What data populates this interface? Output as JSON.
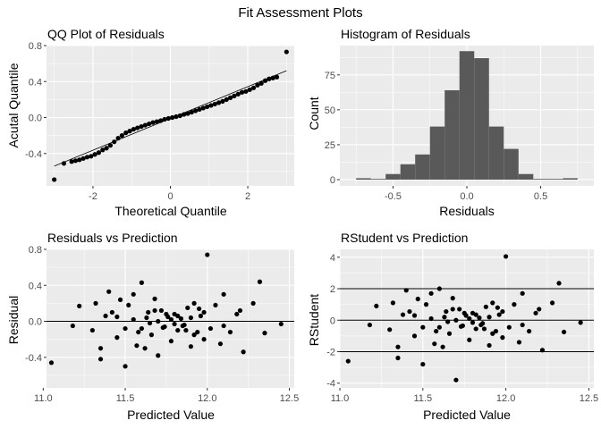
{
  "figure_title": "Fit Assessment Plots",
  "colors": {
    "panel_bg": "#ebebeb",
    "grid": "#ffffff",
    "point": "#000000",
    "bar": "#595959",
    "tick_text": "#4d4d4d"
  },
  "chart_data": [
    {
      "id": "qq",
      "type": "scatter",
      "title": "QQ Plot of Residuals",
      "xlabel": "Theoretical Quantile",
      "ylabel": "Acutal Quantile",
      "xlim": [
        -3.2,
        3.2
      ],
      "ylim": [
        -0.76,
        0.8
      ],
      "xticks": [
        -2,
        0,
        2
      ],
      "xtick_labels": [
        "-2",
        "0",
        "2"
      ],
      "yticks": [
        -0.4,
        0.0,
        0.4,
        0.8
      ],
      "ytick_labels": [
        "-0.4",
        "0.0",
        "0.4",
        "0.8"
      ],
      "reference_line": {
        "x": [
          -3.0,
          3.0
        ],
        "y": [
          -0.54,
          0.52
        ]
      },
      "points": {
        "x": [
          -3.0,
          -2.75,
          -2.55,
          -2.45,
          -2.35,
          -2.25,
          -2.15,
          -2.05,
          -1.95,
          -1.85,
          -1.75,
          -1.65,
          -1.55,
          -1.45,
          -1.35,
          -1.25,
          -1.15,
          -1.05,
          -0.95,
          -0.85,
          -0.75,
          -0.65,
          -0.55,
          -0.45,
          -0.35,
          -0.25,
          -0.15,
          -0.05,
          0.05,
          0.15,
          0.25,
          0.35,
          0.45,
          0.55,
          0.65,
          0.75,
          0.85,
          0.95,
          1.05,
          1.15,
          1.25,
          1.35,
          1.45,
          1.55,
          1.65,
          1.75,
          1.85,
          1.95,
          2.05,
          2.15,
          2.25,
          2.35,
          2.45,
          2.55,
          2.65,
          2.75,
          3.0
        ],
        "y": [
          -0.69,
          -0.51,
          -0.49,
          -0.48,
          -0.47,
          -0.455,
          -0.44,
          -0.43,
          -0.41,
          -0.39,
          -0.36,
          -0.34,
          -0.31,
          -0.27,
          -0.23,
          -0.2,
          -0.17,
          -0.15,
          -0.13,
          -0.115,
          -0.1,
          -0.085,
          -0.07,
          -0.055,
          -0.045,
          -0.035,
          -0.02,
          -0.01,
          0.0,
          0.01,
          0.02,
          0.035,
          0.045,
          0.06,
          0.075,
          0.09,
          0.105,
          0.12,
          0.135,
          0.15,
          0.165,
          0.18,
          0.2,
          0.22,
          0.24,
          0.26,
          0.28,
          0.29,
          0.31,
          0.33,
          0.36,
          0.38,
          0.41,
          0.43,
          0.44,
          0.45,
          0.73
        ]
      }
    },
    {
      "id": "hist",
      "type": "bar",
      "title": "Histogram of Residuals",
      "xlabel": "Residuals",
      "ylabel": "Count",
      "xlim": [
        -0.86,
        0.86
      ],
      "ylim": [
        -4.5,
        96
      ],
      "xticks": [
        -0.5,
        0.0,
        0.5
      ],
      "xtick_labels": [
        "-0.5",
        "0.0",
        "0.5"
      ],
      "yticks": [
        0,
        25,
        50,
        75
      ],
      "ytick_labels": [
        "0",
        "25",
        "50",
        "75"
      ],
      "bin_width": 0.1,
      "bin_centers": [
        -0.7,
        -0.6,
        -0.5,
        -0.4,
        -0.3,
        -0.2,
        -0.1,
        0.0,
        0.1,
        0.2,
        0.3,
        0.4,
        0.5,
        0.6,
        0.7
      ],
      "counts": [
        1,
        0,
        4,
        11,
        18,
        38,
        64,
        92,
        87,
        38,
        22,
        4,
        0,
        0,
        1
      ]
    },
    {
      "id": "resid",
      "type": "scatter",
      "title": "Residuals vs Prediction",
      "xlabel": "Predicted Value",
      "ylabel": "Residual",
      "xlim": [
        11.02,
        12.53
      ],
      "ylim": [
        -0.74,
        0.8
      ],
      "xticks": [
        11.0,
        11.5,
        12.0,
        12.5
      ],
      "xtick_labels": [
        "11.0",
        "11.5",
        "12.0",
        "12.5"
      ],
      "yticks": [
        -0.4,
        0.0,
        0.4,
        0.8
      ],
      "ytick_labels": [
        "-0.4",
        "0.0",
        "0.4",
        "0.8"
      ],
      "hlines": [
        0.0
      ],
      "points": {
        "x": [
          11.05,
          11.18,
          11.22,
          11.3,
          11.32,
          11.35,
          11.38,
          11.4,
          11.42,
          11.45,
          11.47,
          11.5,
          11.52,
          11.55,
          11.57,
          11.6,
          11.62,
          11.64,
          11.66,
          11.68,
          11.7,
          11.72,
          11.74,
          11.76,
          11.78,
          11.8,
          11.82,
          11.84,
          11.86,
          11.88,
          11.9,
          11.92,
          11.94,
          11.96,
          11.98,
          12.0,
          12.02,
          12.05,
          12.08,
          12.1,
          12.14,
          12.18,
          12.22,
          12.28,
          12.32,
          12.35,
          12.45,
          11.55,
          11.65,
          11.75,
          11.85,
          11.95,
          11.7,
          11.8,
          11.9,
          11.6,
          11.78,
          11.82,
          11.73,
          11.87,
          11.68,
          11.92,
          11.98,
          11.63,
          11.58,
          11.45,
          11.5,
          12.1,
          12.2,
          11.35
        ],
        "y": [
          -0.46,
          -0.05,
          0.17,
          -0.1,
          0.2,
          -0.42,
          0.06,
          0.33,
          0.1,
          -0.18,
          0.24,
          -0.5,
          0.18,
          0.3,
          -0.27,
          0.43,
          -0.3,
          0.1,
          -0.15,
          0.25,
          -0.38,
          0.12,
          -0.06,
          0.05,
          -0.22,
          0.08,
          -0.1,
          0.03,
          -0.04,
          0.15,
          -0.28,
          0.2,
          -0.12,
          0.06,
          -0.2,
          0.74,
          -0.08,
          0.18,
          -0.25,
          0.3,
          -0.12,
          0.08,
          -0.34,
          0.2,
          0.44,
          -0.13,
          -0.03,
          0.02,
          -0.02,
          0.08,
          -0.05,
          0.14,
          0.0,
          -0.03,
          0.04,
          -0.08,
          0.02,
          0.06,
          -0.07,
          -0.1,
          0.12,
          -0.15,
          0.1,
          0.04,
          -0.12,
          0.05,
          -0.08,
          -0.05,
          0.12,
          -0.3
        ]
      }
    },
    {
      "id": "rstud",
      "type": "scatter",
      "title": "RStudent vs Prediction",
      "xlabel": "Predicted Value",
      "ylabel": "RStudent",
      "xlim": [
        11.0,
        12.53
      ],
      "ylim": [
        -4.3,
        4.5
      ],
      "xticks": [
        11.0,
        11.5,
        12.0,
        12.5
      ],
      "xtick_labels": [
        "11.0",
        "11.5",
        "12.0",
        "12.5"
      ],
      "yticks": [
        -4,
        -2,
        0,
        2,
        4
      ],
      "ytick_labels": [
        "-4",
        "-2",
        "0",
        "2",
        "4"
      ],
      "hlines": [
        -2,
        0,
        2
      ],
      "points": {
        "x": [
          11.05,
          11.18,
          11.22,
          11.3,
          11.32,
          11.35,
          11.38,
          11.4,
          11.42,
          11.45,
          11.47,
          11.5,
          11.52,
          11.55,
          11.57,
          11.6,
          11.62,
          11.64,
          11.66,
          11.68,
          11.7,
          11.72,
          11.74,
          11.76,
          11.78,
          11.8,
          11.82,
          11.84,
          11.86,
          11.88,
          11.9,
          11.92,
          11.94,
          11.96,
          11.98,
          12.0,
          12.02,
          12.05,
          12.08,
          12.1,
          12.14,
          12.18,
          12.22,
          12.28,
          12.32,
          12.35,
          12.45,
          11.55,
          11.65,
          11.75,
          11.85,
          11.95,
          11.7,
          11.8,
          11.9,
          11.6,
          11.78,
          11.82,
          11.73,
          11.87,
          11.68,
          11.92,
          11.98,
          11.63,
          11.58,
          11.45,
          11.5,
          12.1,
          12.2,
          11.35
        ],
        "y": [
          -2.6,
          -0.3,
          0.9,
          -0.6,
          1.1,
          -2.4,
          0.35,
          1.9,
          0.55,
          -1.0,
          1.35,
          -2.8,
          1.0,
          1.7,
          -1.5,
          2.0,
          -1.7,
          0.55,
          -0.85,
          1.4,
          -3.8,
          0.7,
          -0.35,
          0.3,
          -1.25,
          0.45,
          -0.55,
          0.15,
          -0.2,
          0.85,
          -1.6,
          1.1,
          -0.7,
          0.35,
          -1.1,
          4.05,
          -0.45,
          1.0,
          -1.4,
          1.7,
          -0.7,
          0.45,
          -1.9,
          1.1,
          2.35,
          -0.75,
          -0.15,
          0.1,
          -0.1,
          0.45,
          -0.3,
          0.8,
          0.0,
          -0.15,
          0.2,
          -0.45,
          0.1,
          0.35,
          -0.4,
          -0.55,
          0.7,
          -0.85,
          0.55,
          0.2,
          -0.7,
          0.3,
          -0.45,
          -0.3,
          0.7,
          -1.7
        ]
      }
    }
  ]
}
